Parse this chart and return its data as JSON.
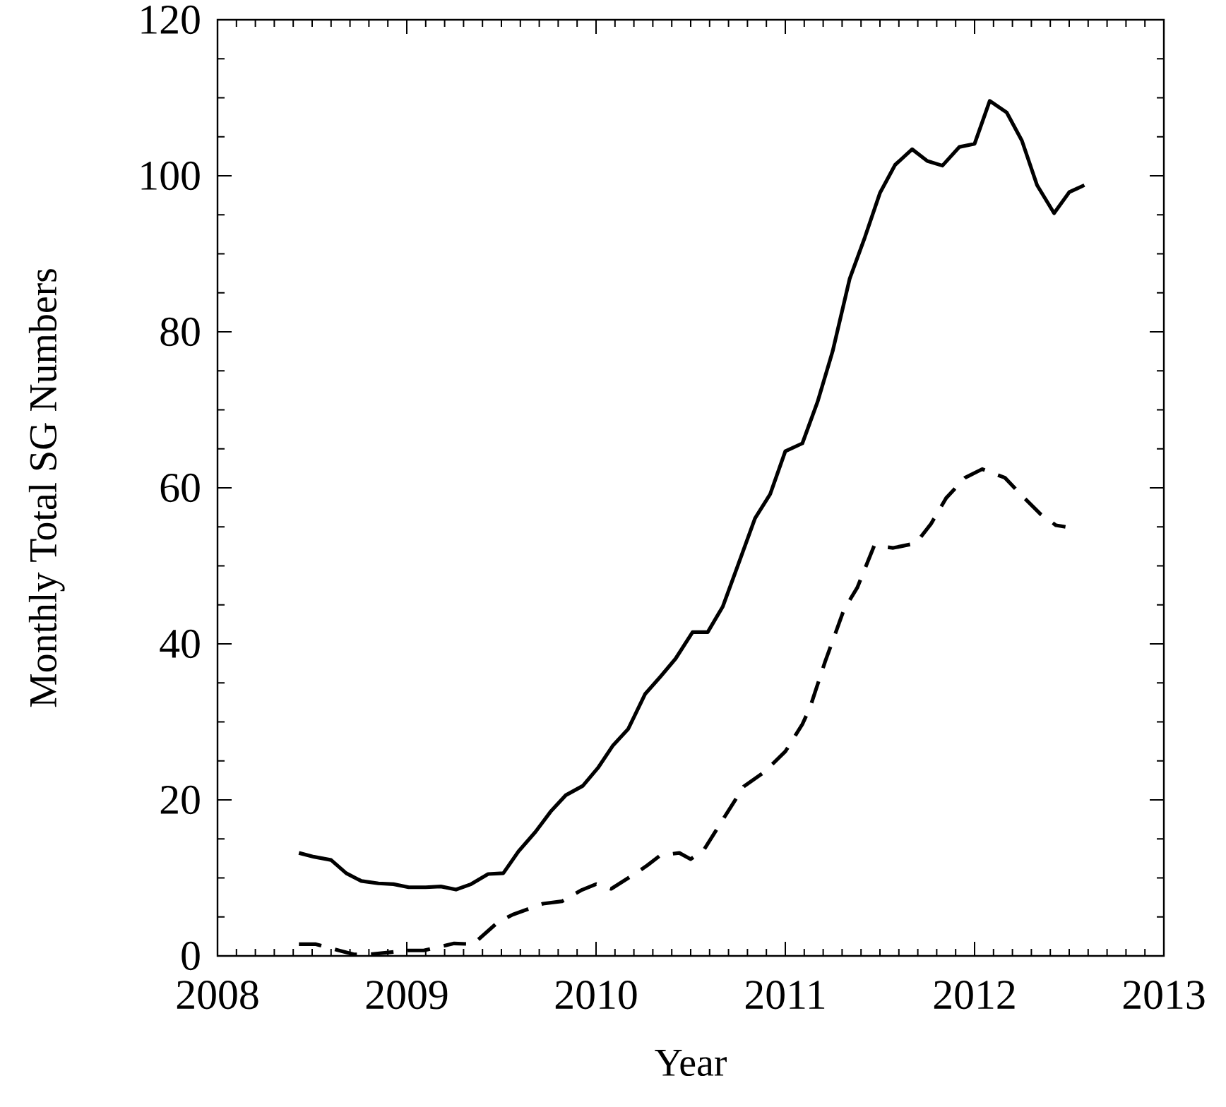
{
  "chart_data": {
    "type": "line",
    "xlabel": "Year",
    "ylabel": "Monthly Total SG Numbers",
    "xlim": [
      2008,
      2013
    ],
    "xticks": [
      2008,
      2009,
      2010,
      2011,
      2012,
      2013
    ],
    "ylim": [
      0,
      120
    ],
    "yticks": [
      0,
      20,
      40,
      60,
      80,
      100,
      120
    ],
    "grid": false,
    "marker": "none",
    "series": [
      {
        "color": "#000000",
        "line_style": "solid",
        "x": [
          2008.43,
          2008.51,
          2008.6,
          2008.68,
          2008.76,
          2008.85,
          2008.93,
          2009.01,
          2009.1,
          2009.18,
          2009.26,
          2009.34,
          2009.43,
          2009.51,
          2009.59,
          2009.68,
          2009.76,
          2009.84,
          2009.93,
          2010.01,
          2010.09,
          2010.17,
          2010.26,
          2010.34,
          2010.42,
          2010.51,
          2010.59,
          2010.67,
          2010.75,
          2010.84,
          2010.92,
          2011.0,
          2011.09,
          2011.17,
          2011.25,
          2011.34,
          2011.42,
          2011.5,
          2011.58,
          2011.67,
          2011.75,
          2011.83,
          2011.92,
          2012.0,
          2012.08,
          2012.17,
          2012.25,
          2012.33,
          2012.42,
          2012.5,
          2012.58
        ],
        "values": [
          13.2,
          12.7,
          12.3,
          10.6,
          9.6,
          9.3,
          9.2,
          8.8,
          8.8,
          8.9,
          8.5,
          9.2,
          10.5,
          10.6,
          13.4,
          15.9,
          18.5,
          20.6,
          21.8,
          24.1,
          27,
          29.1,
          33.6,
          35.8,
          38.1,
          41.5,
          41.5,
          44.8,
          50.1,
          56.1,
          59.2,
          64.7,
          65.7,
          71,
          77.5,
          86.8,
          92.1,
          97.8,
          101.4,
          103.4,
          101.9,
          101.3,
          103.7,
          104.1,
          109.6,
          108.1,
          104.5,
          98.8,
          95.2,
          97.9,
          98.8
        ]
      },
      {
        "color": "#000000",
        "line_style": "dashed",
        "x": [
          2008.43,
          2008.52,
          2008.72,
          2008.8,
          2009.01,
          2009.09,
          2009.25,
          2009.35,
          2009.48,
          2009.56,
          2009.72,
          2009.82,
          2009.92,
          2010.0,
          2010.08,
          2010.21,
          2010.27,
          2010.34,
          2010.44,
          2010.5,
          2010.57,
          2010.66,
          2010.78,
          2010.89,
          2011.0,
          2011.09,
          2011.13,
          2011.21,
          2011.31,
          2011.38,
          2011.47,
          2011.57,
          2011.69,
          2011.77,
          2011.85,
          2011.95,
          2012.04,
          2012.16,
          2012.25,
          2012.35,
          2012.43,
          2012.48
        ],
        "values": [
          1.5,
          1.5,
          0.2,
          0.2,
          0.7,
          0.7,
          1.6,
          1.5,
          4.3,
          5.3,
          6.7,
          7.0,
          8.4,
          9.2,
          8.6,
          10.6,
          11.6,
          12.9,
          13.2,
          12.4,
          13.6,
          17.1,
          21.7,
          23.6,
          26.2,
          29.7,
          31.8,
          37.7,
          44.4,
          47.2,
          52.6,
          52.3,
          52.9,
          55.4,
          58.7,
          61.3,
          62.4,
          61.3,
          59,
          56.6,
          55.2,
          55
        ]
      }
    ]
  }
}
